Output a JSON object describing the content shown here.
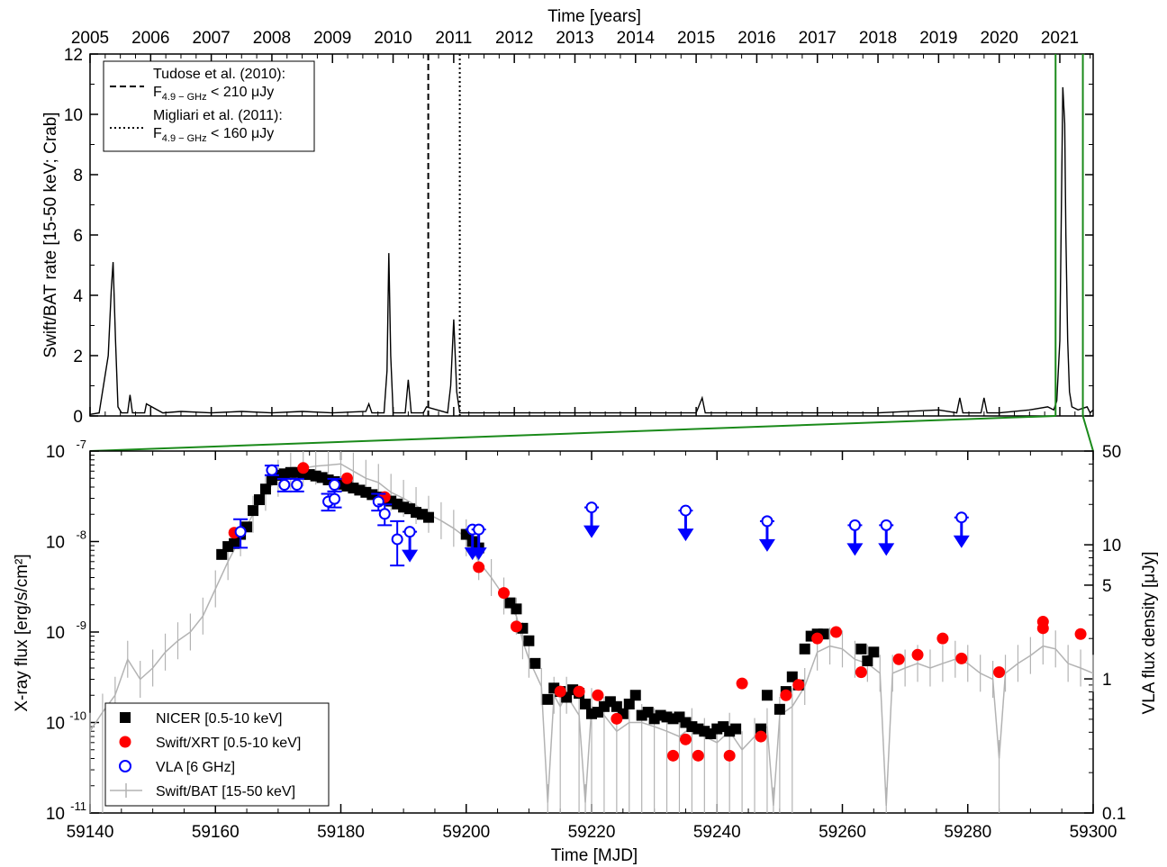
{
  "chart_data": [
    {
      "type": "line",
      "panel": "top",
      "title": "",
      "top_axis_label": "Time [years]",
      "ylabel": "Swift/BAT rate [15-50 keV; Crab]",
      "ylim": [
        0,
        12
      ],
      "yticks": [
        "0",
        "2",
        "4",
        "6",
        "8",
        "10",
        "12"
      ],
      "xlim": [
        2005,
        2021.55
      ],
      "xticks": [
        "2005",
        "2006",
        "2007",
        "2008",
        "2009",
        "2010",
        "2011",
        "2012",
        "2013",
        "2014",
        "2015",
        "2016",
        "2017",
        "2018",
        "2019",
        "2020",
        "2021"
      ],
      "series": [
        {
          "name": "",
          "color": "#000000",
          "x": [
            2005.0,
            2005.15,
            2005.3,
            2005.35,
            2005.38,
            2005.42,
            2005.46,
            2005.52,
            2005.62,
            2005.66,
            2005.7,
            2005.9,
            2005.93,
            2006.2,
            2006.5,
            2007.0,
            2007.5,
            2008.0,
            2008.5,
            2009.0,
            2009.55,
            2009.6,
            2009.65,
            2009.85,
            2009.9,
            2009.93,
            2009.96,
            2010.0,
            2010.2,
            2010.25,
            2010.3,
            2010.5,
            2010.55,
            2010.9,
            2010.95,
            2011.0,
            2011.05,
            2011.1,
            2011.5,
            2012.0,
            2013.0,
            2014.0,
            2015.0,
            2015.1,
            2015.15,
            2015.2,
            2016.0,
            2017.0,
            2018.0,
            2019.0,
            2019.3,
            2019.35,
            2019.4,
            2019.7,
            2019.75,
            2019.8,
            2020.0,
            2020.5,
            2020.8,
            2020.9,
            2020.95,
            2021.0,
            2021.05,
            2021.08,
            2021.1,
            2021.13,
            2021.16,
            2021.2,
            2021.3,
            2021.45,
            2021.5,
            2021.55
          ],
          "y": [
            0.05,
            0.1,
            2.0,
            4.2,
            5.1,
            2.5,
            0.3,
            0.1,
            0.1,
            0.7,
            0.1,
            0.1,
            0.4,
            0.1,
            0.15,
            0.1,
            0.15,
            0.1,
            0.15,
            0.1,
            0.15,
            0.4,
            0.1,
            0.1,
            1.5,
            5.4,
            2.0,
            0.1,
            0.1,
            1.2,
            0.1,
            0.1,
            0.3,
            0.1,
            1.0,
            3.2,
            0.8,
            0.1,
            0.1,
            0.1,
            0.1,
            0.1,
            0.1,
            0.6,
            0.1,
            0.1,
            0.1,
            0.1,
            0.1,
            0.2,
            0.1,
            0.6,
            0.1,
            0.1,
            0.6,
            0.1,
            0.1,
            0.2,
            0.3,
            0.2,
            0.5,
            2.5,
            10.9,
            9.7,
            6.0,
            2.5,
            0.8,
            0.3,
            0.2,
            0.3,
            0.1,
            0.2
          ]
        }
      ],
      "vlines": [
        {
          "x": 2010.58,
          "style": "dashed"
        },
        {
          "x": 2011.1,
          "style": "dotted"
        }
      ],
      "green_window": [
        2020.93,
        2021.38
      ],
      "legend": {
        "placement": "top-left",
        "entries": [
          {
            "style": "dashed",
            "line1": "Tudose et al. (2010):",
            "f": "F",
            "sub": "4.9 − GHz",
            "rest": " < 210 μJy"
          },
          {
            "style": "dotted",
            "line1": "Migliari et al. (2011):",
            "f": "F",
            "sub": "4.9 − GHz",
            "rest": " < 160 μJy"
          }
        ]
      }
    },
    {
      "type": "scatter",
      "panel": "bottom",
      "title": "",
      "xlabel": "Time [MJD]",
      "ylabel": "X-ray flux [erg/s/cm²]",
      "ylabel_right": "VLA flux density [μJy]",
      "xlim": [
        59140,
        59300
      ],
      "ylim": [
        1e-11,
        1e-07
      ],
      "yscale": "log",
      "xticks": [
        "59140",
        "59160",
        "59180",
        "59200",
        "59220",
        "59240",
        "59260",
        "59280",
        "59300"
      ],
      "yticks": [
        {
          "base": "10",
          "exp": "-7",
          "value": 1e-07
        },
        {
          "base": "10",
          "exp": "-8",
          "value": 1e-08
        },
        {
          "base": "10",
          "exp": "-9",
          "value": 1e-09
        },
        {
          "base": "10",
          "exp": "-10",
          "value": 1e-10
        },
        {
          "base": "10",
          "exp": "-11",
          "value": 1e-11
        }
      ],
      "yticks_right": [
        {
          "label": "50",
          "value": 50
        },
        {
          "label": "10",
          "value": 10
        },
        {
          "label": "5",
          "value": 5
        },
        {
          "label": "1",
          "value": 1
        },
        {
          "label": "0.1",
          "value": 0.1
        }
      ],
      "ylim_right": [
        0.1,
        50
      ],
      "legend": {
        "placement": "bottom-left",
        "entries": [
          {
            "label": "NICER [0.5-10 keV]",
            "marker": "square",
            "color": "#000000"
          },
          {
            "label": "Swift/XRT [0.5-10 keV]",
            "marker": "circle",
            "color": "#ff0000"
          },
          {
            "label": "VLA [6 GHz]",
            "marker": "open-circle",
            "color": "#0000ff"
          },
          {
            "label": "Swift/BAT [15-50 keV]",
            "marker": "line",
            "color": "#b3b3b3"
          }
        ]
      },
      "series": [
        {
          "name": "NICER [0.5-10 keV]",
          "color": "#000000",
          "x": [
            59161,
            59162,
            59163,
            59164,
            59165,
            59166,
            59167,
            59168,
            59169,
            59170,
            59171,
            59172,
            59173,
            59174,
            59175,
            59176,
            59177,
            59178,
            59179,
            59180,
            59181,
            59182,
            59183,
            59184,
            59185,
            59186,
            59187,
            59188,
            59189,
            59190,
            59191,
            59192,
            59193,
            59194,
            59200,
            59201,
            59202,
            59207,
            59208,
            59209,
            59210,
            59211,
            59213,
            59214,
            59215,
            59216,
            59217,
            59218,
            59219,
            59220,
            59221,
            59222,
            59223,
            59224,
            59225,
            59226,
            59227,
            59228,
            59229,
            59230,
            59231,
            59232,
            59233,
            59234,
            59235,
            59236,
            59237,
            59238,
            59239,
            59240,
            59241,
            59242,
            59243,
            59247,
            59248,
            59250,
            59251,
            59252,
            59253,
            59254,
            59255,
            59256,
            59257,
            59263,
            59264,
            59265
          ],
          "y": [
            7.2e-09,
            8.8e-09,
            9.5e-09,
            1.2e-08,
            1.45e-08,
            2.2e-08,
            2.9e-08,
            3.8e-08,
            4.8e-08,
            5.4e-08,
            5.6e-08,
            5.8e-08,
            5.8e-08,
            5.6e-08,
            5.5e-08,
            5.3e-08,
            5.1e-08,
            4.8e-08,
            4.6e-08,
            4.3e-08,
            4.1e-08,
            3.9e-08,
            3.7e-08,
            3.5e-08,
            3.3e-08,
            3.1e-08,
            2.9e-08,
            2.8e-08,
            2.6e-08,
            2.4e-08,
            2.3e-08,
            2.1e-08,
            2e-08,
            1.85e-08,
            1.2e-08,
            1e-08,
            8.5e-09,
            2.1e-09,
            1.8e-09,
            1.1e-09,
            8e-10,
            4.5e-10,
            1.8e-10,
            2.4e-10,
            2.2e-10,
            1.9e-10,
            2.3e-10,
            2.1e-10,
            1.6e-10,
            1.25e-10,
            1.3e-10,
            1.5e-10,
            1.7e-10,
            1.5e-10,
            1.25e-10,
            1.6e-10,
            2e-10,
            1.2e-10,
            1.3e-10,
            1.1e-10,
            1.2e-10,
            1.15e-10,
            1.1e-10,
            1.15e-10,
            1e-10,
            9e-11,
            8.5e-11,
            8e-11,
            7.5e-11,
            8.5e-11,
            9e-11,
            8e-11,
            8.5e-11,
            8.5e-11,
            2e-10,
            1.4e-10,
            2.2e-10,
            3.2e-10,
            2.6e-10,
            6.5e-10,
            9e-10,
            9.5e-10,
            9.5e-10,
            6.5e-10,
            4.8e-10,
            6e-10
          ]
        },
        {
          "name": "Swift/XRT [0.5-10 keV]",
          "color": "#ff0000",
          "x": [
            59163,
            59174,
            59181,
            59187,
            59202,
            59206,
            59208,
            59215,
            59218,
            59221,
            59224,
            59233,
            59235,
            59237,
            59242,
            59244,
            59247,
            59251,
            59253,
            59256,
            59259,
            59263,
            59269,
            59272,
            59276,
            59279,
            59285,
            59292,
            59292,
            59298
          ],
          "y": [
            1.25e-08,
            6.5e-08,
            5e-08,
            3.1e-08,
            5.2e-09,
            2.7e-09,
            1.15e-09,
            2.2e-10,
            2.2e-10,
            2e-10,
            1.1e-10,
            4.3e-11,
            6.5e-11,
            4.3e-11,
            4.3e-11,
            2.7e-10,
            7e-11,
            2e-10,
            2.6e-10,
            8.5e-10,
            1e-09,
            3.6e-10,
            5e-10,
            5.6e-10,
            8.5e-10,
            5.1e-10,
            3.6e-10,
            1.3e-09,
            1.1e-09,
            9.5e-10
          ]
        },
        {
          "name": "VLA [6 GHz]",
          "color": "#0000ff",
          "x": [
            59164,
            59169,
            59171,
            59173,
            59178,
            59179,
            59179,
            59186,
            59187,
            59189,
            59191,
            59201,
            59202,
            59220,
            59235,
            59248,
            59262,
            59267,
            59279
          ],
          "y": [
            12.5,
            36,
            28,
            28,
            21,
            22,
            28,
            21,
            17,
            11,
            12.5,
            13,
            13,
            19,
            18,
            15,
            14,
            14,
            16
          ],
          "err_lo": [
            3,
            3,
            3,
            3,
            3,
            3,
            3,
            3,
            3,
            4,
            0,
            0,
            0,
            0,
            0,
            0,
            0,
            0,
            0
          ],
          "err_hi": [
            3,
            3,
            3,
            3,
            3,
            3,
            3,
            3,
            3,
            4,
            0,
            0,
            0,
            0,
            0,
            0,
            0,
            0,
            0
          ],
          "upper_limit": [
            false,
            false,
            false,
            false,
            false,
            false,
            false,
            false,
            false,
            false,
            true,
            true,
            true,
            true,
            true,
            true,
            true,
            true,
            true
          ]
        },
        {
          "name": "Swift/BAT [15-50 keV]",
          "color": "#b3b3b3",
          "x": [
            59140,
            59142,
            59144,
            59146,
            59148,
            59150,
            59152,
            59154,
            59156,
            59158,
            59160,
            59162,
            59164,
            59166,
            59168,
            59170,
            59172,
            59174,
            59176,
            59178,
            59180,
            59182,
            59184,
            59186,
            59188,
            59190,
            59192,
            59194,
            59196,
            59198,
            59200,
            59202,
            59204,
            59206,
            59208,
            59209,
            59210,
            59212,
            59213,
            59214,
            59215,
            59216,
            59218,
            59219,
            59220,
            59222,
            59224,
            59226,
            59228,
            59230,
            59232,
            59234,
            59236,
            59238,
            59240,
            59242,
            59244,
            59246,
            59248,
            59249,
            59250,
            59252,
            59254,
            59256,
            59258,
            59260,
            59262,
            59264,
            59266,
            59267,
            59268,
            59270,
            59272,
            59274,
            59276,
            59278,
            59280,
            59282,
            59284,
            59285,
            59286,
            59288,
            59290,
            59292,
            59294,
            59296,
            59298,
            59300
          ],
          "y": [
            8e-11,
            1.3e-10,
            2e-10,
            5e-10,
            3e-10,
            4e-10,
            6e-10,
            8e-10,
            1e-09,
            1.5e-09,
            3e-09,
            6e-09,
            1.1e-08,
            2e-08,
            3.5e-08,
            5e-08,
            6e-08,
            6.5e-08,
            6.8e-08,
            7e-08,
            7.2e-08,
            6e-08,
            5e-08,
            4.5e-08,
            3.5e-08,
            3e-08,
            2.5e-08,
            2e-08,
            1.7e-08,
            1.4e-08,
            1.1e-08,
            6e-09,
            4e-09,
            2.5e-09,
            1.5e-09,
            8e-10,
            5e-10,
            2.5e-10,
            1.3e-11,
            2e-10,
            1.5e-10,
            2e-10,
            1.2e-10,
            1.3e-11,
            1.5e-10,
            1.2e-10,
            8e-11,
            1e-10,
            1e-10,
            9e-11,
            8e-11,
            7e-11,
            9e-11,
            7e-11,
            6e-11,
            8e-11,
            5e-11,
            7e-11,
            9e-11,
            1.2e-11,
            1.2e-10,
            1.5e-10,
            2.5e-10,
            6e-10,
            7e-10,
            6.5e-10,
            5e-10,
            4.5e-10,
            3.5e-10,
            1.2e-11,
            3.5e-10,
            4e-10,
            4.5e-10,
            4e-10,
            4.5e-10,
            5e-10,
            4.5e-10,
            3.5e-10,
            3e-10,
            4e-11,
            3.5e-10,
            4.5e-10,
            5.5e-10,
            7e-10,
            6.5e-10,
            4.5e-10,
            4e-10,
            3.5e-10
          ]
        }
      ]
    }
  ]
}
